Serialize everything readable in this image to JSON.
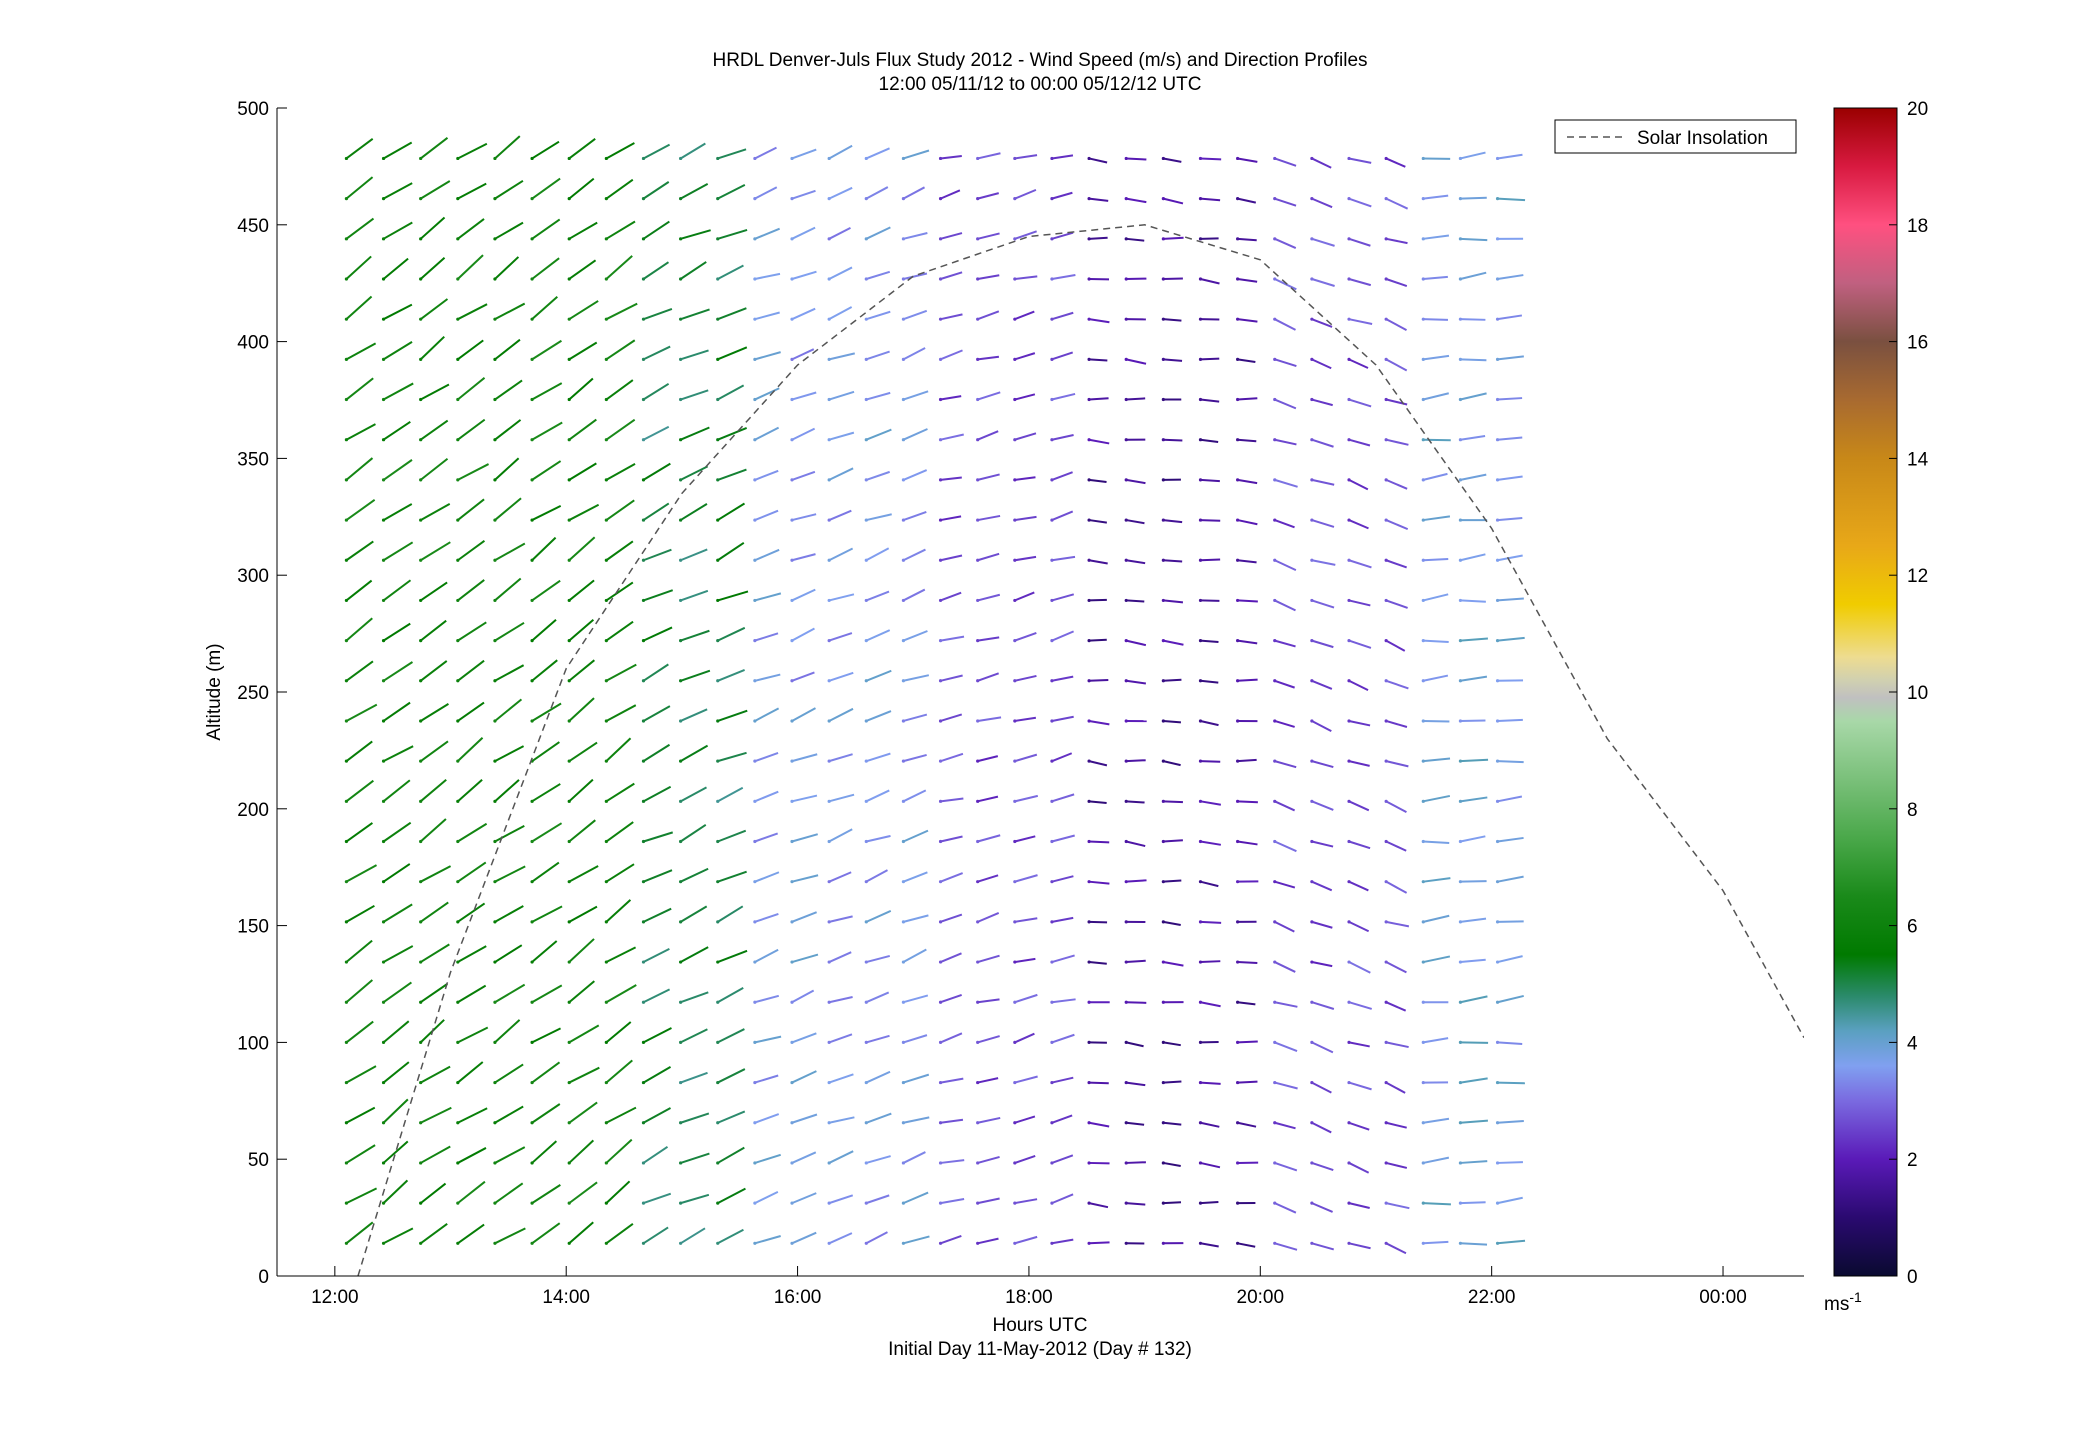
{
  "chart_data": {
    "type": "wind-barb-profile",
    "title": "HRDL Denver-Juls Flux Study 2012 - Wind Speed (m/s) and Direction Profiles",
    "subtitle": "12:00 05/11/12 to 00:00 05/12/12  UTC",
    "xlabel": "Hours UTC",
    "xlabel2": "Initial Day 11-May-2012 (Day # 132)",
    "ylabel": "Altitude (m)",
    "xlim_hours": [
      11.5,
      24.7
    ],
    "ylim": [
      0,
      500
    ],
    "x_ticks": [
      {
        "value": 12,
        "label": "12:00"
      },
      {
        "value": 14,
        "label": "14:00"
      },
      {
        "value": 16,
        "label": "16:00"
      },
      {
        "value": 18,
        "label": "18:00"
      },
      {
        "value": 20,
        "label": "20:00"
      },
      {
        "value": 22,
        "label": "22:00"
      },
      {
        "value": 24,
        "label": "00:00"
      }
    ],
    "y_ticks": [
      0,
      50,
      100,
      150,
      200,
      250,
      300,
      350,
      400,
      450,
      500
    ],
    "colorbar": {
      "label": "ms⁻¹",
      "label_main": "ms",
      "label_sup": "-1",
      "range": [
        0,
        20
      ],
      "ticks": [
        0,
        2,
        4,
        6,
        8,
        10,
        12,
        14,
        16,
        18,
        20
      ],
      "stops": [
        {
          "v": 0,
          "c": "#0a0a30"
        },
        {
          "v": 1,
          "c": "#2a0a70"
        },
        {
          "v": 2,
          "c": "#5a1ab8"
        },
        {
          "v": 3,
          "c": "#7a6ae0"
        },
        {
          "v": 3.6,
          "c": "#80a0f0"
        },
        {
          "v": 4.2,
          "c": "#5aa0c0"
        },
        {
          "v": 4.8,
          "c": "#2a8a6a"
        },
        {
          "v": 5.5,
          "c": "#007a00"
        },
        {
          "v": 6.5,
          "c": "#1a8a1a"
        },
        {
          "v": 7.5,
          "c": "#4aa84a"
        },
        {
          "v": 8.5,
          "c": "#7ac07a"
        },
        {
          "v": 9.5,
          "c": "#a8d8a8"
        },
        {
          "v": 9.9,
          "c": "#c0c0c0"
        },
        {
          "v": 10.2,
          "c": "#d0d0b0"
        },
        {
          "v": 10.6,
          "c": "#eedc90"
        },
        {
          "v": 11.5,
          "c": "#f0cc00"
        },
        {
          "v": 12.5,
          "c": "#e8a818"
        },
        {
          "v": 14,
          "c": "#c88818"
        },
        {
          "v": 15,
          "c": "#a86a30"
        },
        {
          "v": 16,
          "c": "#7a5040"
        },
        {
          "v": 17,
          "c": "#c06080"
        },
        {
          "v": 18,
          "c": "#ff5080"
        },
        {
          "v": 19,
          "c": "#d81a40"
        },
        {
          "v": 20,
          "c": "#9a0000"
        }
      ]
    },
    "series": [
      {
        "name": "Solar Insolation",
        "style": "dashed",
        "color": "#555555",
        "points": [
          [
            12.2,
            0
          ],
          [
            13,
            130
          ],
          [
            14,
            260
          ],
          [
            15,
            335
          ],
          [
            16,
            390
          ],
          [
            17,
            428
          ],
          [
            18,
            445
          ],
          [
            19,
            450
          ],
          [
            20,
            435
          ],
          [
            21,
            390
          ],
          [
            22,
            320
          ],
          [
            23,
            230
          ],
          [
            24,
            165
          ],
          [
            24.7,
            102
          ]
        ]
      }
    ],
    "legend": {
      "placement": "top-right",
      "entries": [
        "Solar Insolation"
      ]
    },
    "wind": {
      "times_hours_start": 12.1,
      "times_hours_step": 0.321,
      "times_count": 32,
      "altitudes_start": 14,
      "altitudes_step": 17.2,
      "altitudes_count": 28,
      "regimes": [
        {
          "from_hour": 12.0,
          "to_hour": 14.4,
          "speed_ms": 6.0,
          "direction_deg": 235
        },
        {
          "from_hour": 14.4,
          "to_hour": 15.6,
          "speed_ms": 5.0,
          "direction_deg": 245
        },
        {
          "from_hour": 15.6,
          "to_hour": 17.0,
          "speed_ms": 3.6,
          "direction_deg": 250
        },
        {
          "from_hour": 17.0,
          "to_hour": 18.4,
          "speed_ms": 2.6,
          "direction_deg": 255
        },
        {
          "from_hour": 18.4,
          "to_hour": 19.9,
          "speed_ms": 1.6,
          "direction_deg": 275
        },
        {
          "from_hour": 19.9,
          "to_hour": 21.4,
          "speed_ms": 2.6,
          "direction_deg": 290
        },
        {
          "from_hour": 21.4,
          "to_hour": 22.3,
          "speed_ms": 3.8,
          "direction_deg": 265
        },
        {
          "from_hour": 22.3,
          "to_hour": 24.1,
          "speed_ms": 3.8,
          "direction_deg": 250
        }
      ]
    }
  }
}
